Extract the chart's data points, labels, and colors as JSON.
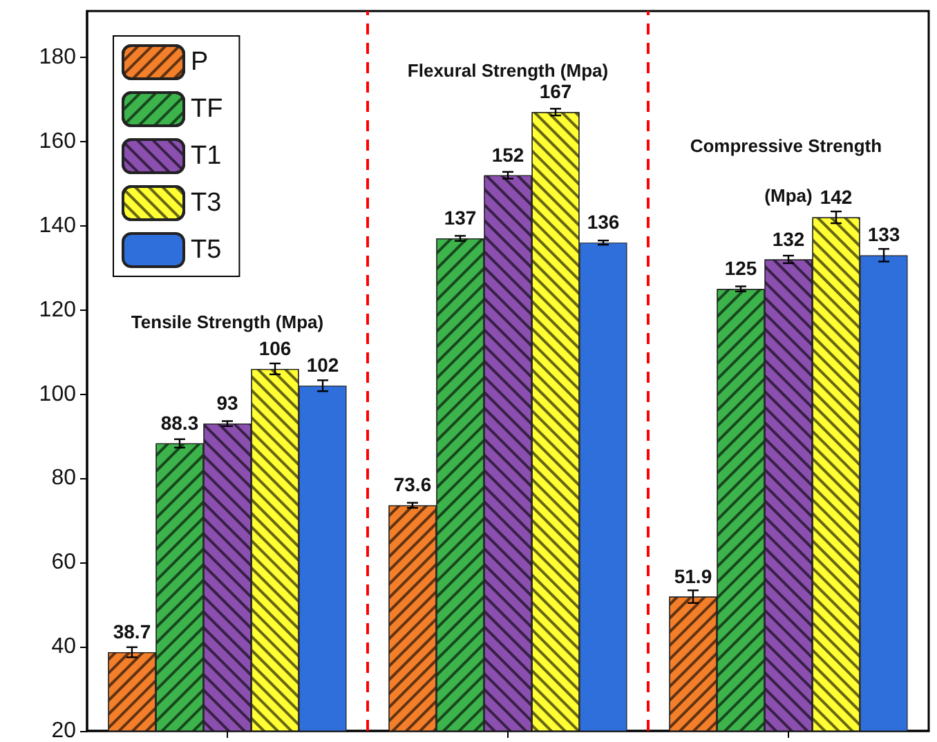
{
  "chart_data": {
    "type": "bar",
    "categories": [
      null,
      null,
      null
    ],
    "series": [
      {
        "name": "P",
        "color": "#f47f2a",
        "values": [
          38.7,
          73.6,
          51.9
        ],
        "errors": [
          1.2,
          0.6,
          1.5
        ]
      },
      {
        "name": "TF",
        "color": "#3cb44b",
        "values": [
          88.3,
          137,
          125
        ],
        "errors": [
          1,
          0.6,
          0.6
        ]
      },
      {
        "name": "T1",
        "color": "#8b4fb0",
        "values": [
          93,
          152,
          132
        ],
        "errors": [
          0.6,
          0.8,
          0.9
        ]
      },
      {
        "name": "T3",
        "color": "#ffff33",
        "values": [
          106,
          167,
          142
        ],
        "errors": [
          1.3,
          0.8,
          1.4
        ]
      },
      {
        "name": "T5",
        "color": "#2f6fdb",
        "values": [
          102,
          136,
          133
        ],
        "errors": [
          1.3,
          0.5,
          1.5
        ]
      }
    ],
    "data_labels": true,
    "annotations": [
      "Tensile Strength (Mpa)",
      "Flexural Strength (Mpa)",
      "Compressive Strength (Mpa)"
    ],
    "ylim": [
      20,
      191
    ],
    "yticks": [
      20,
      40,
      60,
      80,
      100,
      120,
      140,
      160,
      180
    ],
    "tick_labels": "y",
    "grid": false,
    "legend": "top left"
  }
}
